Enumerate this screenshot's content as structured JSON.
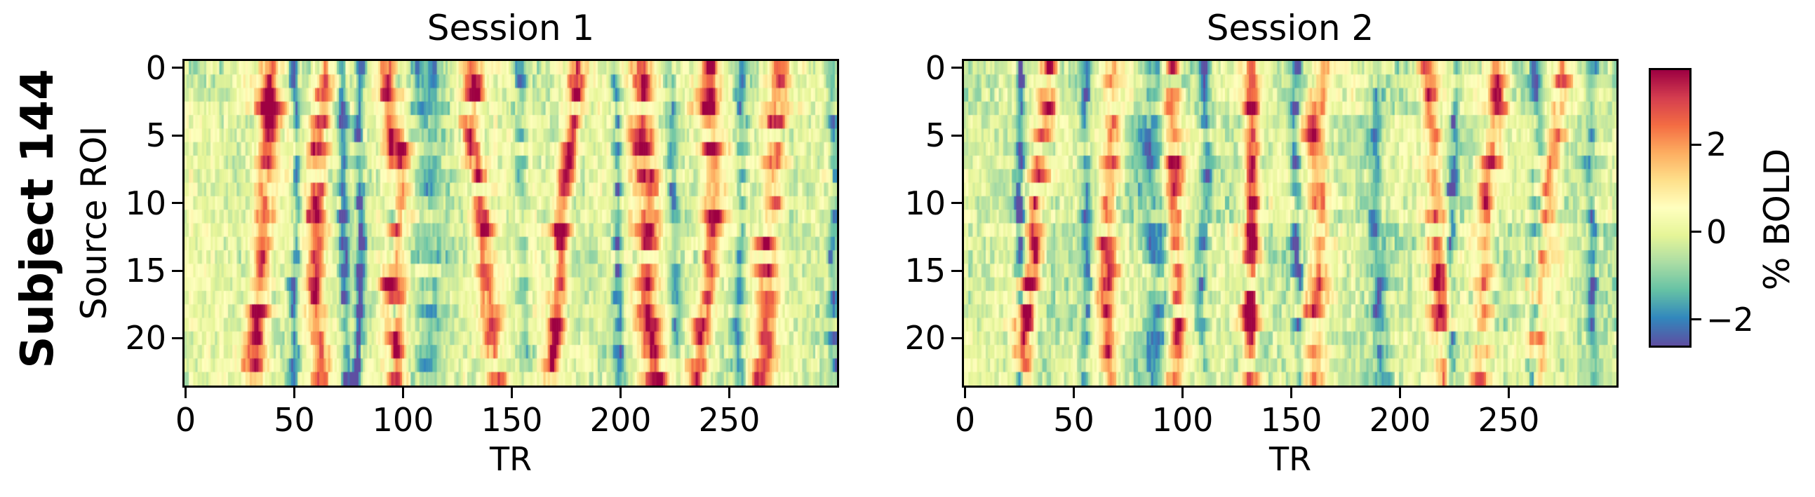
{
  "figure": {
    "row_label": "Subject 144",
    "xlabel": "TR",
    "ylabel": "Source ROI",
    "colorbar_label": "% BOLD",
    "text_color": "#000000",
    "background": "#ffffff"
  },
  "chart_data": {
    "type": "heatmap",
    "subject": "Subject 144",
    "xlabel": "TR",
    "ylabel": "Source ROI",
    "n_rois": 24,
    "n_trs": 300,
    "x_range": [
      0,
      300
    ],
    "y_range": [
      0,
      24
    ],
    "x_tick_values": [
      0,
      50,
      100,
      150,
      200,
      250
    ],
    "x_tick_labels": [
      "0",
      "50",
      "100",
      "150",
      "200",
      "250"
    ],
    "y_tick_values": [
      0,
      5,
      10,
      15,
      20
    ],
    "y_tick_labels": [
      "0",
      "5",
      "10",
      "15",
      "20"
    ],
    "grid": false,
    "colorbar": {
      "label": "% BOLD",
      "vmin": -2.6,
      "vmax": 3.7,
      "tick_values": [
        2,
        0,
        -2
      ],
      "tick_labels": [
        "2",
        "0",
        "−2"
      ],
      "colormap": "Spectral_r",
      "stops": [
        "#5e4fa2",
        "#3288bd",
        "#66c2a5",
        "#abdda4",
        "#e6f598",
        "#ffffbf",
        "#fee08b",
        "#fdae61",
        "#f46d43",
        "#d53e4f",
        "#9e0142"
      ]
    },
    "sessions": [
      {
        "title": "Session 1",
        "seed": 141,
        "bg_bias": -0.02,
        "patch_amp": 0.38,
        "bands": [
          {
            "tr": 40,
            "amp": 3.4,
            "width": 3.2,
            "slope": -9,
            "wander": 1.0
          },
          {
            "tr": 63,
            "amp": 2.6,
            "width": 2.8,
            "slope": -4,
            "wander": 1.2
          },
          {
            "tr": 93,
            "amp": 3.2,
            "width": 3.0,
            "slope": 3,
            "wander": 1.2
          },
          {
            "tr": 131,
            "amp": 2.9,
            "width": 3.2,
            "slope": 4,
            "wander": 1.4
          },
          {
            "tr": 179,
            "amp": 3.6,
            "width": 2.6,
            "slope": -9,
            "wander": 1.0
          },
          {
            "tr": 210,
            "amp": 2.7,
            "width": 3.4,
            "slope": 2,
            "wander": 1.4
          },
          {
            "tr": 241,
            "amp": 2.9,
            "width": 3.0,
            "slope": -5,
            "wander": 1.2
          },
          {
            "tr": 274,
            "amp": 2.5,
            "width": 3.4,
            "slope": -8,
            "wander": 1.5
          },
          {
            "tr": 50,
            "amp": -1.8,
            "width": 1.4,
            "slope": 0,
            "wander": 0.8
          },
          {
            "tr": 71,
            "amp": -2.0,
            "width": 1.5,
            "slope": 2,
            "wander": 0.8
          },
          {
            "tr": 80,
            "amp": -2.6,
            "width": 1.2,
            "slope": 0,
            "wander": 0.6
          },
          {
            "tr": 97,
            "amp": -1.7,
            "width": 1.3,
            "slope": 0,
            "wander": 0.8
          },
          {
            "tr": 113,
            "amp": -1.2,
            "width": 5.0,
            "slope": 0,
            "wander": 1.5
          },
          {
            "tr": 153,
            "amp": -1.3,
            "width": 2.0,
            "slope": 3,
            "wander": 1.0
          },
          {
            "tr": 196,
            "amp": -1.9,
            "width": 1.6,
            "slope": 0,
            "wander": 0.8
          },
          {
            "tr": 222,
            "amp": -1.3,
            "width": 1.6,
            "slope": 0,
            "wander": 1.0
          },
          {
            "tr": 256,
            "amp": -1.5,
            "width": 1.8,
            "slope": 2,
            "wander": 1.0
          },
          {
            "tr": 296,
            "amp": -1.6,
            "width": 1.6,
            "slope": 0,
            "wander": 0.8
          }
        ]
      },
      {
        "title": "Session 2",
        "seed": 242,
        "bg_bias": -0.2,
        "patch_amp": 0.52,
        "bands": [
          {
            "tr": 39,
            "amp": 3.3,
            "width": 3.0,
            "slope": -11,
            "wander": 1.0
          },
          {
            "tr": 68,
            "amp": 2.6,
            "width": 3.0,
            "slope": -4,
            "wander": 1.3
          },
          {
            "tr": 96,
            "amp": 3.1,
            "width": 2.8,
            "slope": 2,
            "wander": 1.2
          },
          {
            "tr": 132,
            "amp": 3.7,
            "width": 2.4,
            "slope": -2,
            "wander": 0.6
          },
          {
            "tr": 167,
            "amp": 2.3,
            "width": 3.2,
            "slope": -8,
            "wander": 1.5
          },
          {
            "tr": 211,
            "amp": 3.0,
            "width": 2.8,
            "slope": 5,
            "wander": 1.2
          },
          {
            "tr": 244,
            "amp": 2.9,
            "width": 3.0,
            "slope": -6,
            "wander": 1.2
          },
          {
            "tr": 274,
            "amp": 2.4,
            "width": 3.4,
            "slope": -6,
            "wander": 1.5
          },
          {
            "tr": 25,
            "amp": -2.5,
            "width": 1.2,
            "slope": 0,
            "wander": 0.5
          },
          {
            "tr": 55,
            "amp": -1.4,
            "width": 1.6,
            "slope": 0,
            "wander": 0.8
          },
          {
            "tr": 87,
            "amp": -1.3,
            "width": 4.5,
            "slope": 0,
            "wander": 1.2
          },
          {
            "tr": 110,
            "amp": -1.5,
            "width": 1.6,
            "slope": 0,
            "wander": 0.9
          },
          {
            "tr": 152,
            "amp": -1.8,
            "width": 1.4,
            "slope": 0,
            "wander": 0.8
          },
          {
            "tr": 190,
            "amp": -1.5,
            "width": 2.0,
            "slope": 3,
            "wander": 1.0
          },
          {
            "tr": 226,
            "amp": -1.7,
            "width": 1.4,
            "slope": 0,
            "wander": 0.9
          },
          {
            "tr": 262,
            "amp": -1.5,
            "width": 1.8,
            "slope": 0,
            "wander": 1.0
          },
          {
            "tr": 289,
            "amp": -1.6,
            "width": 1.6,
            "slope": 0,
            "wander": 0.8
          }
        ]
      }
    ]
  }
}
